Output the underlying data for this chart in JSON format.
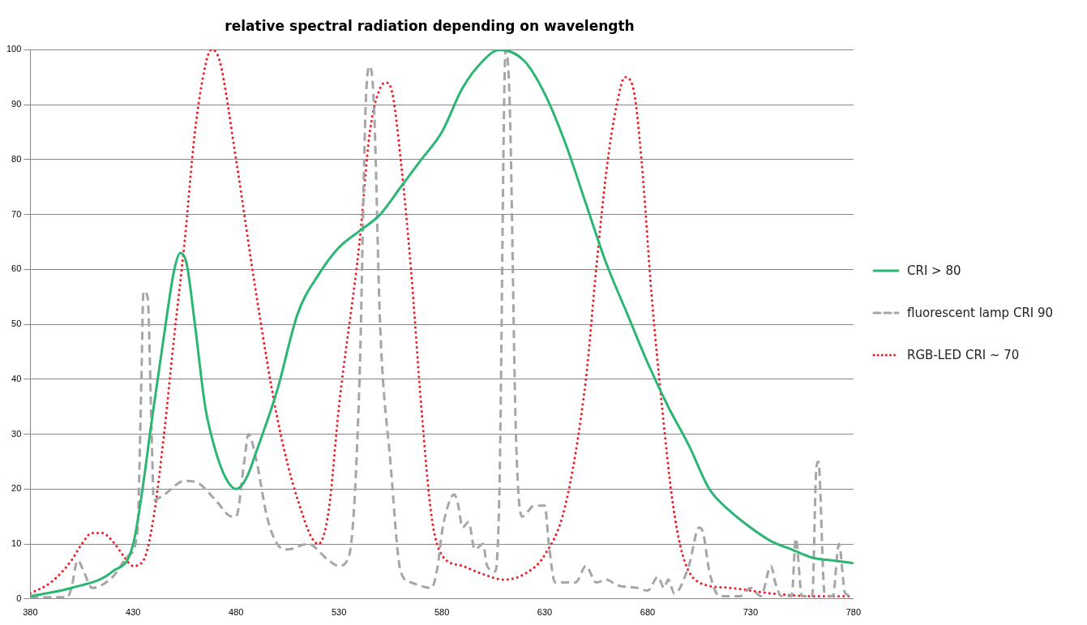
{
  "chart_data": {
    "type": "line",
    "title": "relative spectral radiation depending on wavelength",
    "xlim": [
      380,
      780
    ],
    "xticks": [
      380,
      430,
      480,
      530,
      580,
      630,
      680,
      730,
      780
    ],
    "ylim": [
      0,
      100
    ],
    "yticks": [
      0,
      10,
      20,
      30,
      40,
      50,
      60,
      70,
      80,
      90,
      100
    ],
    "grid": "y",
    "legend": "right",
    "marker": "none",
    "series": [
      {
        "name": "CRI > 80",
        "color": "#2bb673",
        "line_style": "solid",
        "x": [
          380,
          400,
          420,
          430,
          440,
          445,
          450,
          453,
          456,
          460,
          465,
          470,
          475,
          480,
          485,
          490,
          500,
          510,
          520,
          530,
          540,
          550,
          560,
          570,
          580,
          590,
          600,
          608,
          620,
          630,
          640,
          650,
          660,
          670,
          680,
          690,
          700,
          710,
          720,
          730,
          740,
          750,
          760,
          770,
          780
        ],
        "values": [
          0.5,
          2,
          5,
          10,
          35,
          48,
          60,
          63,
          61,
          50,
          35,
          27,
          22,
          20,
          22,
          27,
          38,
          52,
          59,
          64,
          67,
          70,
          75,
          80,
          85,
          93,
          98,
          100,
          98,
          92,
          83,
          72,
          61,
          52,
          43,
          35,
          28,
          20,
          16,
          13,
          10.5,
          9,
          7.5,
          7,
          6.5
        ]
      },
      {
        "name": "fluorescent lamp CRI 90",
        "color": "#a6a6a8",
        "line_style": "dashed",
        "x": [
          380,
          398,
          400,
          403,
          406,
          410,
          420,
          428,
          432,
          434,
          435,
          437,
          439,
          440,
          445,
          455,
          462,
          470,
          478,
          480,
          484,
          486,
          490,
          495,
          500,
          505,
          515,
          525,
          530,
          535,
          540,
          543,
          545,
          547,
          550,
          555,
          560,
          565,
          575,
          578,
          580,
          583,
          586,
          588,
          590,
          593,
          596,
          600,
          602,
          606,
          608,
          611,
          613,
          616,
          619,
          625,
          630,
          632,
          635,
          645,
          650,
          655,
          660,
          665,
          675,
          680,
          685,
          688,
          690,
          693,
          700,
          705,
          707,
          710,
          715,
          725,
          730,
          735,
          740,
          742,
          745,
          750,
          752,
          755,
          760,
          762,
          763,
          766,
          770,
          773,
          776,
          780
        ],
        "values": [
          0.3,
          0.3,
          2,
          7,
          5,
          2,
          4,
          8,
          12,
          40,
          56,
          55,
          30,
          18,
          19,
          21.5,
          21,
          18,
          15,
          15,
          25,
          30,
          25,
          15,
          10,
          9,
          10,
          7,
          6,
          8,
          40,
          90,
          97,
          90,
          50,
          25,
          5,
          3,
          2,
          6,
          12,
          17,
          19,
          17,
          13,
          14,
          9,
          10,
          6,
          5,
          20,
          100,
          90,
          30,
          15,
          17,
          17,
          10,
          3,
          3,
          6,
          3,
          3.5,
          2.5,
          2,
          1.5,
          4,
          2,
          3.5,
          1,
          6,
          13,
          12,
          5,
          0.5,
          0.5,
          2,
          0.5,
          6,
          3,
          0.5,
          0.5,
          11,
          0.5,
          0.5,
          24,
          25,
          1,
          0.5,
          10,
          1,
          0.5
        ]
      },
      {
        "name": "RGB-LED CRI ~ 70",
        "color": "#ee1c25",
        "line_style": "dotted",
        "x": [
          380,
          390,
          400,
          405,
          410,
          415,
          420,
          425,
          430,
          435,
          440,
          445,
          450,
          455,
          460,
          465,
          468,
          472,
          480,
          490,
          500,
          510,
          520,
          525,
          530,
          540,
          545,
          550,
          553,
          556,
          560,
          565,
          570,
          575,
          580,
          590,
          600,
          610,
          620,
          630,
          640,
          650,
          655,
          660,
          665,
          669,
          673,
          677,
          682,
          687,
          692,
          697,
          705,
          720,
          740,
          760,
          780
        ],
        "values": [
          1,
          3,
          7,
          10,
          12,
          12,
          10.5,
          8,
          6,
          7,
          15,
          30,
          48,
          65,
          85,
          97,
          100,
          98,
          80,
          55,
          33,
          18,
          10,
          16,
          35,
          65,
          85,
          93,
          94,
          92,
          80,
          60,
          35,
          15,
          8,
          6,
          4.5,
          3.5,
          4.5,
          8,
          17,
          40,
          60,
          78,
          90,
          95,
          93,
          80,
          55,
          35,
          18,
          8,
          3,
          2,
          1,
          0.5,
          0.5
        ]
      }
    ]
  }
}
